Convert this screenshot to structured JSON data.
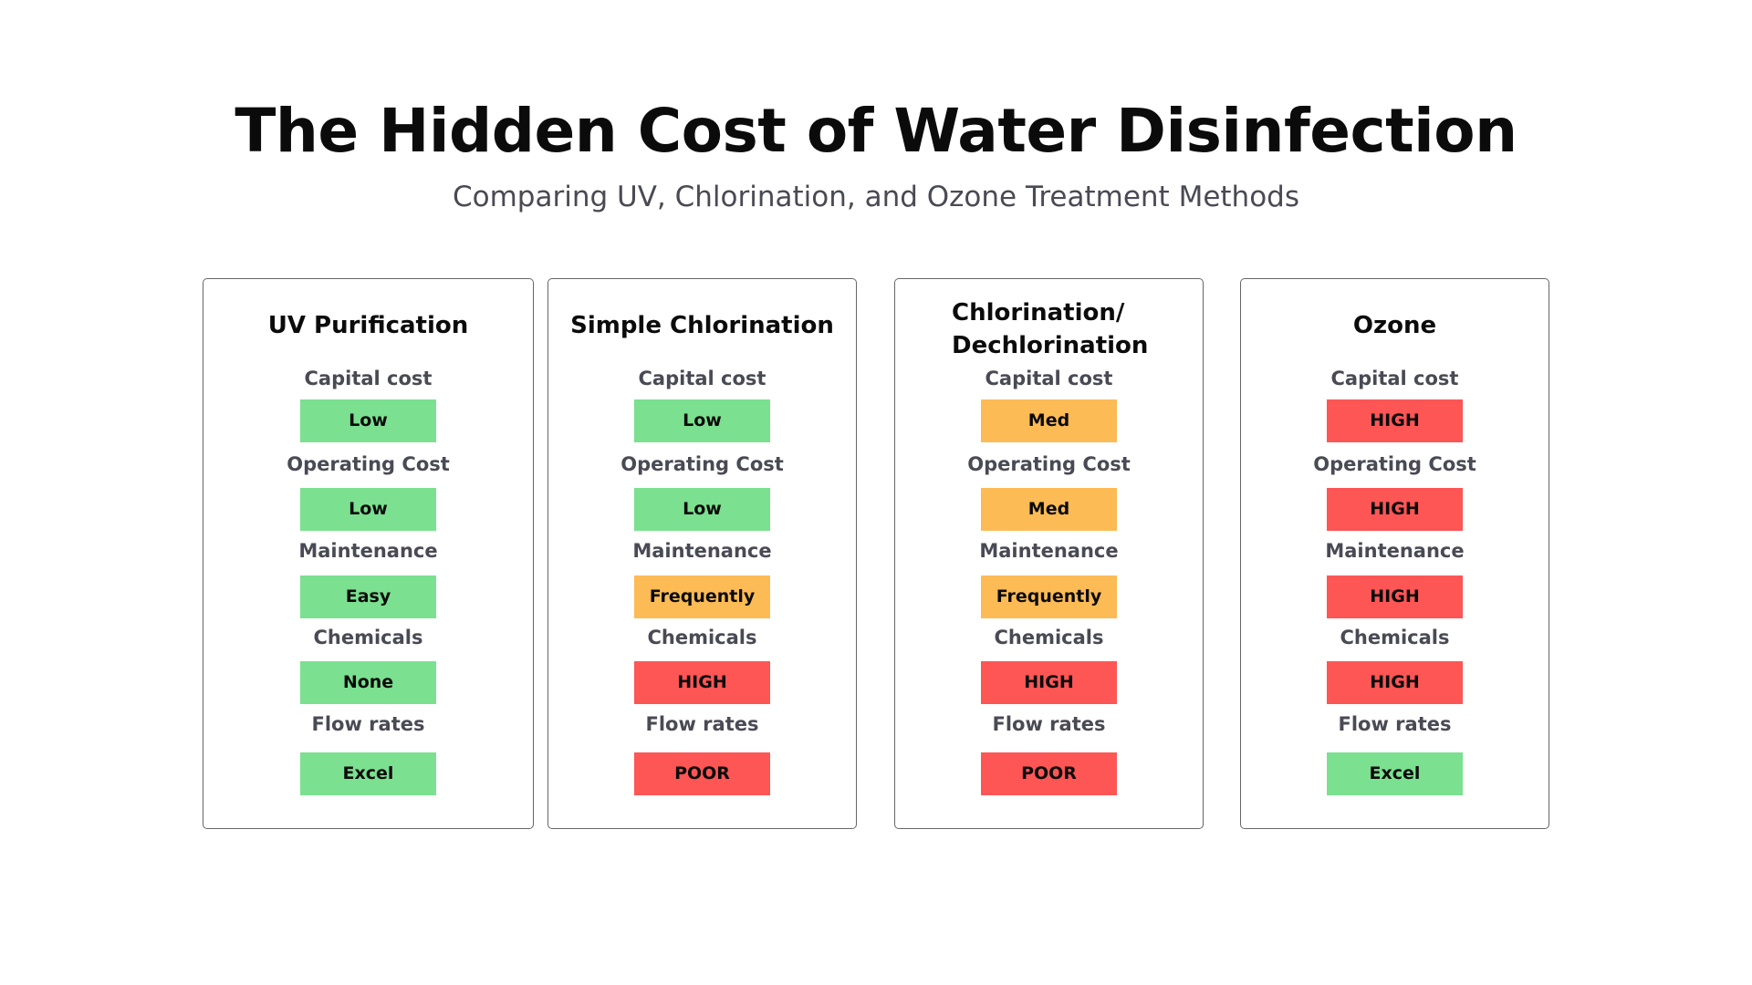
{
  "title": "The Hidden Cost of Water Disinfection",
  "subtitle": "Comparing UV, Chlorination, and Ozone Treatment Methods",
  "colors": {
    "good": "#7be08f",
    "medium": "#fdbb55",
    "bad": "#fe5555"
  },
  "cards": [
    {
      "title": "UV Purification",
      "rows": [
        {
          "label": "Capital cost",
          "value": "Low",
          "rating": "good"
        },
        {
          "label": "Operating Cost",
          "value": "Low",
          "rating": "good"
        },
        {
          "label": "Maintenance",
          "value": "Easy",
          "rating": "good"
        },
        {
          "label": "Chemicals",
          "value": "None",
          "rating": "good"
        },
        {
          "label": "Flow rates",
          "value": "Excel",
          "rating": "good"
        }
      ]
    },
    {
      "title": "Simple Chlorination",
      "rows": [
        {
          "label": "Capital cost",
          "value": "Low",
          "rating": "good"
        },
        {
          "label": "Operating Cost",
          "value": "Low",
          "rating": "good"
        },
        {
          "label": "Maintenance",
          "value": "Frequently",
          "rating": "medium"
        },
        {
          "label": "Chemicals",
          "value": "HIGH",
          "rating": "bad"
        },
        {
          "label": "Flow rates",
          "value": "POOR",
          "rating": "bad"
        }
      ]
    },
    {
      "title": "Chlorination/ Dechlorination",
      "rows": [
        {
          "label": "Capital cost",
          "value": "Med",
          "rating": "medium"
        },
        {
          "label": "Operating Cost",
          "value": "Med",
          "rating": "medium"
        },
        {
          "label": "Maintenance",
          "value": "Frequently",
          "rating": "medium"
        },
        {
          "label": "Chemicals",
          "value": "HIGH",
          "rating": "bad"
        },
        {
          "label": "Flow rates",
          "value": "POOR",
          "rating": "bad"
        }
      ]
    },
    {
      "title": "Ozone",
      "rows": [
        {
          "label": "Capital cost",
          "value": "HIGH",
          "rating": "bad"
        },
        {
          "label": "Operating Cost",
          "value": "HIGH",
          "rating": "bad"
        },
        {
          "label": "Maintenance",
          "value": "HIGH",
          "rating": "bad"
        },
        {
          "label": "Chemicals",
          "value": "HIGH",
          "rating": "bad"
        },
        {
          "label": "Flow rates",
          "value": "Excel",
          "rating": "good"
        }
      ]
    }
  ]
}
